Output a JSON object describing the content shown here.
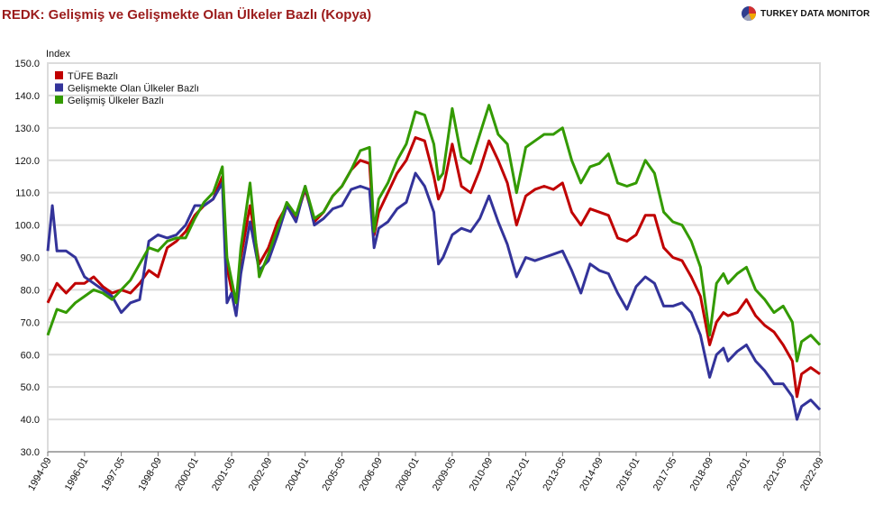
{
  "header": {
    "title": "REDK: Gelişmiş ve Gelişmekte Olan Ülkeler Bazlı (Kopya)",
    "brand": "TURKEY DATA MONITOR",
    "logo_icon": "pie-logo-icon"
  },
  "chart_data": {
    "type": "line",
    "title": "REDK: Gelişmiş ve Gelişmekte Olan Ülkeler Bazlı (Kopya)",
    "ylabel": "Index",
    "xlabel": "",
    "ylim": [
      30,
      150
    ],
    "yticks": [
      "150.0",
      "140.0",
      "130.0",
      "120.0",
      "110.0",
      "100.0",
      "90.0",
      "80.0",
      "70.0",
      "60.0",
      "50.0",
      "40.0",
      "30.0"
    ],
    "xticks": [
      "1994-09",
      "1996-01",
      "1997-05",
      "1998-09",
      "2000-01",
      "2001-05",
      "2002-09",
      "2004-01",
      "2005-05",
      "2006-09",
      "2008-01",
      "2009-05",
      "2010-09",
      "2012-01",
      "2013-05",
      "2014-09",
      "2016-01",
      "2017-05",
      "2018-09",
      "2020-01",
      "2021-05",
      "2022-09"
    ],
    "grid": true,
    "legend_position": "top-left",
    "series": [
      {
        "name": "TÜFE Bazlı",
        "color": "#c00000",
        "points": [
          [
            "1994-09",
            76
          ],
          [
            "1995-01",
            82
          ],
          [
            "1995-05",
            79
          ],
          [
            "1995-09",
            82
          ],
          [
            "1996-01",
            82
          ],
          [
            "1996-05",
            84
          ],
          [
            "1996-09",
            81
          ],
          [
            "1997-01",
            79
          ],
          [
            "1997-05",
            80
          ],
          [
            "1997-09",
            79
          ],
          [
            "1998-01",
            82
          ],
          [
            "1998-05",
            86
          ],
          [
            "1998-09",
            84
          ],
          [
            "1999-01",
            93
          ],
          [
            "1999-05",
            95
          ],
          [
            "1999-09",
            98
          ],
          [
            "2000-01",
            103
          ],
          [
            "2000-05",
            106
          ],
          [
            "2000-09",
            108
          ],
          [
            "2001-01",
            115
          ],
          [
            "2001-03",
            87
          ],
          [
            "2001-05",
            80
          ],
          [
            "2001-07",
            76
          ],
          [
            "2001-09",
            90
          ],
          [
            "2002-01",
            106
          ],
          [
            "2002-05",
            88
          ],
          [
            "2002-09",
            93
          ],
          [
            "2003-01",
            101
          ],
          [
            "2003-05",
            106
          ],
          [
            "2003-09",
            102
          ],
          [
            "2004-01",
            111
          ],
          [
            "2004-05",
            101
          ],
          [
            "2004-09",
            104
          ],
          [
            "2005-01",
            109
          ],
          [
            "2005-05",
            112
          ],
          [
            "2005-09",
            117
          ],
          [
            "2006-01",
            120
          ],
          [
            "2006-05",
            119
          ],
          [
            "2006-07",
            97
          ],
          [
            "2006-09",
            104
          ],
          [
            "2007-01",
            110
          ],
          [
            "2007-05",
            116
          ],
          [
            "2007-09",
            120
          ],
          [
            "2008-01",
            127
          ],
          [
            "2008-05",
            126
          ],
          [
            "2008-09",
            115
          ],
          [
            "2008-11",
            108
          ],
          [
            "2009-01",
            111
          ],
          [
            "2009-05",
            125
          ],
          [
            "2009-09",
            112
          ],
          [
            "2010-01",
            110
          ],
          [
            "2010-05",
            117
          ],
          [
            "2010-09",
            126
          ],
          [
            "2011-01",
            120
          ],
          [
            "2011-05",
            113
          ],
          [
            "2011-09",
            100
          ],
          [
            "2012-01",
            109
          ],
          [
            "2012-05",
            111
          ],
          [
            "2012-09",
            112
          ],
          [
            "2013-01",
            111
          ],
          [
            "2013-05",
            113
          ],
          [
            "2013-09",
            104
          ],
          [
            "2014-01",
            100
          ],
          [
            "2014-05",
            105
          ],
          [
            "2014-09",
            104
          ],
          [
            "2015-01",
            103
          ],
          [
            "2015-05",
            96
          ],
          [
            "2015-09",
            95
          ],
          [
            "2016-01",
            97
          ],
          [
            "2016-05",
            103
          ],
          [
            "2016-09",
            103
          ],
          [
            "2017-01",
            93
          ],
          [
            "2017-05",
            90
          ],
          [
            "2017-09",
            89
          ],
          [
            "2018-01",
            84
          ],
          [
            "2018-05",
            78
          ],
          [
            "2018-09",
            63
          ],
          [
            "2018-12",
            70
          ],
          [
            "2019-03",
            73
          ],
          [
            "2019-05",
            72
          ],
          [
            "2019-09",
            73
          ],
          [
            "2020-01",
            77
          ],
          [
            "2020-05",
            72
          ],
          [
            "2020-09",
            69
          ],
          [
            "2021-01",
            67
          ],
          [
            "2021-05",
            63
          ],
          [
            "2021-09",
            58
          ],
          [
            "2021-11",
            47
          ],
          [
            "2022-01",
            54
          ],
          [
            "2022-05",
            56
          ],
          [
            "2022-09",
            54
          ]
        ]
      },
      {
        "name": "Gelişmekte Olan Ülkeler Bazlı",
        "color": "#33339a",
        "points": [
          [
            "1994-09",
            92
          ],
          [
            "1994-11",
            106
          ],
          [
            "1995-01",
            92
          ],
          [
            "1995-05",
            92
          ],
          [
            "1995-09",
            90
          ],
          [
            "1996-01",
            84
          ],
          [
            "1996-05",
            82
          ],
          [
            "1996-09",
            80
          ],
          [
            "1997-01",
            78
          ],
          [
            "1997-05",
            73
          ],
          [
            "1997-09",
            76
          ],
          [
            "1998-01",
            77
          ],
          [
            "1998-05",
            95
          ],
          [
            "1998-09",
            97
          ],
          [
            "1999-01",
            96
          ],
          [
            "1999-05",
            97
          ],
          [
            "1999-09",
            100
          ],
          [
            "2000-01",
            106
          ],
          [
            "2000-05",
            106
          ],
          [
            "2000-09",
            108
          ],
          [
            "2001-01",
            113
          ],
          [
            "2001-03",
            76
          ],
          [
            "2001-05",
            79
          ],
          [
            "2001-07",
            72
          ],
          [
            "2001-09",
            85
          ],
          [
            "2002-01",
            101
          ],
          [
            "2002-05",
            86
          ],
          [
            "2002-09",
            89
          ],
          [
            "2003-01",
            97
          ],
          [
            "2003-05",
            106
          ],
          [
            "2003-09",
            101
          ],
          [
            "2004-01",
            112
          ],
          [
            "2004-05",
            100
          ],
          [
            "2004-09",
            102
          ],
          [
            "2005-01",
            105
          ],
          [
            "2005-05",
            106
          ],
          [
            "2005-09",
            111
          ],
          [
            "2006-01",
            112
          ],
          [
            "2006-05",
            111
          ],
          [
            "2006-07",
            93
          ],
          [
            "2006-09",
            99
          ],
          [
            "2007-01",
            101
          ],
          [
            "2007-05",
            105
          ],
          [
            "2007-09",
            107
          ],
          [
            "2008-01",
            116
          ],
          [
            "2008-05",
            112
          ],
          [
            "2008-09",
            104
          ],
          [
            "2008-11",
            88
          ],
          [
            "2009-01",
            90
          ],
          [
            "2009-05",
            97
          ],
          [
            "2009-09",
            99
          ],
          [
            "2010-01",
            98
          ],
          [
            "2010-05",
            102
          ],
          [
            "2010-09",
            109
          ],
          [
            "2011-01",
            101
          ],
          [
            "2011-05",
            94
          ],
          [
            "2011-09",
            84
          ],
          [
            "2012-01",
            90
          ],
          [
            "2012-05",
            89
          ],
          [
            "2012-09",
            90
          ],
          [
            "2013-01",
            91
          ],
          [
            "2013-05",
            92
          ],
          [
            "2013-09",
            86
          ],
          [
            "2014-01",
            79
          ],
          [
            "2014-05",
            88
          ],
          [
            "2014-09",
            86
          ],
          [
            "2015-01",
            85
          ],
          [
            "2015-05",
            79
          ],
          [
            "2015-09",
            74
          ],
          [
            "2016-01",
            81
          ],
          [
            "2016-05",
            84
          ],
          [
            "2016-09",
            82
          ],
          [
            "2017-01",
            75
          ],
          [
            "2017-05",
            75
          ],
          [
            "2017-09",
            76
          ],
          [
            "2018-01",
            73
          ],
          [
            "2018-05",
            66
          ],
          [
            "2018-09",
            53
          ],
          [
            "2018-12",
            60
          ],
          [
            "2019-03",
            62
          ],
          [
            "2019-05",
            58
          ],
          [
            "2019-09",
            61
          ],
          [
            "2020-01",
            63
          ],
          [
            "2020-05",
            58
          ],
          [
            "2020-09",
            55
          ],
          [
            "2021-01",
            51
          ],
          [
            "2021-05",
            51
          ],
          [
            "2021-09",
            47
          ],
          [
            "2021-11",
            40
          ],
          [
            "2022-01",
            44
          ],
          [
            "2022-05",
            46
          ],
          [
            "2022-09",
            43
          ]
        ]
      },
      {
        "name": "Gelişmiş Ülkeler Bazlı",
        "color": "#339a00",
        "points": [
          [
            "1994-09",
            66
          ],
          [
            "1995-01",
            74
          ],
          [
            "1995-05",
            73
          ],
          [
            "1995-09",
            76
          ],
          [
            "1996-01",
            78
          ],
          [
            "1996-05",
            80
          ],
          [
            "1996-09",
            79
          ],
          [
            "1997-01",
            77
          ],
          [
            "1997-05",
            80
          ],
          [
            "1997-09",
            83
          ],
          [
            "1998-01",
            88
          ],
          [
            "1998-05",
            93
          ],
          [
            "1998-09",
            92
          ],
          [
            "1999-01",
            95
          ],
          [
            "1999-05",
            96
          ],
          [
            "1999-09",
            96
          ],
          [
            "2000-01",
            102
          ],
          [
            "2000-05",
            107
          ],
          [
            "2000-09",
            110
          ],
          [
            "2001-01",
            118
          ],
          [
            "2001-03",
            90
          ],
          [
            "2001-05",
            83
          ],
          [
            "2001-07",
            76
          ],
          [
            "2001-09",
            93
          ],
          [
            "2002-01",
            113
          ],
          [
            "2002-05",
            84
          ],
          [
            "2002-09",
            91
          ],
          [
            "2003-01",
            99
          ],
          [
            "2003-05",
            107
          ],
          [
            "2003-09",
            103
          ],
          [
            "2004-01",
            112
          ],
          [
            "2004-05",
            102
          ],
          [
            "2004-09",
            104
          ],
          [
            "2005-01",
            109
          ],
          [
            "2005-05",
            112
          ],
          [
            "2005-09",
            117
          ],
          [
            "2006-01",
            123
          ],
          [
            "2006-05",
            124
          ],
          [
            "2006-07",
            98
          ],
          [
            "2006-09",
            108
          ],
          [
            "2007-01",
            113
          ],
          [
            "2007-05",
            120
          ],
          [
            "2007-09",
            125
          ],
          [
            "2008-01",
            135
          ],
          [
            "2008-05",
            134
          ],
          [
            "2008-09",
            125
          ],
          [
            "2008-11",
            114
          ],
          [
            "2009-01",
            116
          ],
          [
            "2009-05",
            136
          ],
          [
            "2009-09",
            121
          ],
          [
            "2010-01",
            119
          ],
          [
            "2010-05",
            128
          ],
          [
            "2010-09",
            137
          ],
          [
            "2011-01",
            128
          ],
          [
            "2011-05",
            125
          ],
          [
            "2011-09",
            110
          ],
          [
            "2012-01",
            124
          ],
          [
            "2012-05",
            126
          ],
          [
            "2012-09",
            128
          ],
          [
            "2013-01",
            128
          ],
          [
            "2013-05",
            130
          ],
          [
            "2013-09",
            120
          ],
          [
            "2014-01",
            113
          ],
          [
            "2014-05",
            118
          ],
          [
            "2014-09",
            119
          ],
          [
            "2015-01",
            122
          ],
          [
            "2015-05",
            113
          ],
          [
            "2015-09",
            112
          ],
          [
            "2016-01",
            113
          ],
          [
            "2016-05",
            120
          ],
          [
            "2016-09",
            116
          ],
          [
            "2017-01",
            104
          ],
          [
            "2017-05",
            101
          ],
          [
            "2017-09",
            100
          ],
          [
            "2018-01",
            95
          ],
          [
            "2018-05",
            87
          ],
          [
            "2018-09",
            66
          ],
          [
            "2018-12",
            82
          ],
          [
            "2019-03",
            85
          ],
          [
            "2019-05",
            82
          ],
          [
            "2019-09",
            85
          ],
          [
            "2020-01",
            87
          ],
          [
            "2020-05",
            80
          ],
          [
            "2020-09",
            77
          ],
          [
            "2021-01",
            73
          ],
          [
            "2021-05",
            75
          ],
          [
            "2021-09",
            70
          ],
          [
            "2021-11",
            58
          ],
          [
            "2022-01",
            64
          ],
          [
            "2022-05",
            66
          ],
          [
            "2022-09",
            63
          ]
        ]
      }
    ]
  }
}
